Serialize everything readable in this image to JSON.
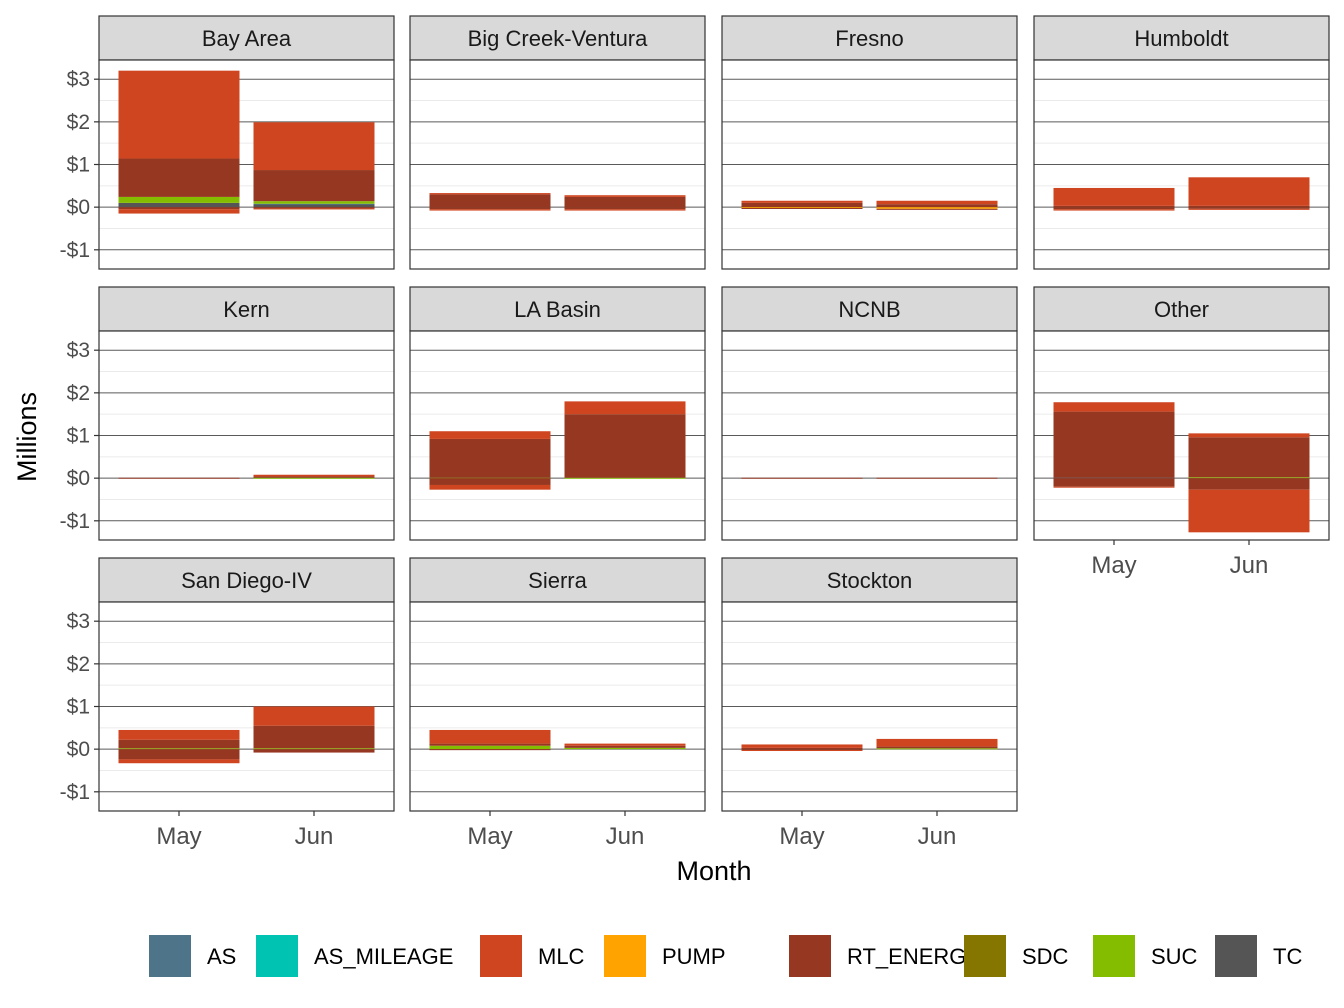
{
  "chart_data": {
    "type": "bar",
    "stacked": true,
    "facet_layout": "wrap-4-columns",
    "xlabel": "Month",
    "ylabel": "Millions",
    "ylim": [
      -1.45,
      3.45
    ],
    "y_ticks": [
      -1,
      0,
      1,
      2,
      3
    ],
    "y_tick_labels": [
      "-$1",
      "$0",
      "$1",
      "$2",
      "$3"
    ],
    "categories": [
      "May",
      "Jun"
    ],
    "grid": true,
    "legend_position": "bottom",
    "legend": [
      {
        "name": "AS",
        "color": "#4E7489"
      },
      {
        "name": "AS_MILEAGE",
        "color": "#00C4B1"
      },
      {
        "name": "MLC",
        "color": "#CF4520"
      },
      {
        "name": "PUMP",
        "color": "#FFA300"
      },
      {
        "name": "RT_ENERGY",
        "color": "#963821"
      },
      {
        "name": "SDC",
        "color": "#857600"
      },
      {
        "name": "SUC",
        "color": "#84BD00"
      },
      {
        "name": "TC",
        "color": "#555555"
      }
    ],
    "panels": [
      {
        "name": "Bay Area",
        "series": {
          "May": {
            "TC": 0.1,
            "SUC": 0.14,
            "RT_ENERGY": [
              0.9,
              -0.05
            ],
            "MLC": [
              2.06,
              -0.1
            ]
          },
          "Jun": {
            "TC": 0.07,
            "SUC": 0.06,
            "RT_ENERGY": [
              0.73,
              -0.03
            ],
            "MLC": [
              1.12,
              -0.02
            ],
            "AS": 0.01
          }
        }
      },
      {
        "name": "Big Creek-Ventura",
        "series": {
          "May": {
            "RT_ENERGY": [
              0.3,
              -0.05
            ],
            "MLC": [
              0.03,
              -0.03
            ]
          },
          "Jun": {
            "RT_ENERGY": [
              0.24,
              -0.05
            ],
            "MLC": [
              0.04,
              -0.03
            ]
          }
        }
      },
      {
        "name": "Fresno",
        "series": {
          "May": {
            "RT_ENERGY": [
              0.1,
              -0.01
            ],
            "MLC": [
              0.05,
              0
            ],
            "PUMP": -0.02
          },
          "Jun": {
            "RT_ENERGY": [
              0.07,
              -0.01
            ],
            "MLC": [
              0.08,
              0
            ],
            "PUMP": -0.04
          }
        }
      },
      {
        "name": "Humboldt",
        "series": {
          "May": {
            "RT_ENERGY": [
              0.03,
              -0.05
            ],
            "MLC": [
              0.42,
              -0.03
            ]
          },
          "Jun": {
            "RT_ENERGY": [
              0.03,
              -0.04
            ],
            "MLC": [
              0.67,
              -0.02
            ]
          }
        }
      },
      {
        "name": "Kern",
        "series": {
          "May": {
            "RT_ENERGY": [
              0.01,
              0
            ]
          },
          "Jun": {
            "SUC": 0.01,
            "RT_ENERGY": [
              0.03,
              0
            ],
            "MLC": [
              0.04,
              0
            ]
          }
        }
      },
      {
        "name": "LA Basin",
        "series": {
          "May": {
            "SUC": 0.01,
            "RT_ENERGY": [
              0.91,
              -0.16
            ],
            "MLC": [
              0.18,
              -0.11
            ]
          },
          "Jun": {
            "SUC": 0.01,
            "RT_ENERGY": [
              1.49,
              0
            ],
            "MLC": [
              0.3,
              0
            ]
          }
        }
      },
      {
        "name": "NCNB",
        "series": {
          "May": {
            "RT_ENERGY": [
              0.01,
              0
            ]
          },
          "Jun": {
            "RT_ENERGY": [
              0.01,
              0
            ]
          }
        }
      },
      {
        "name": "Other",
        "series": {
          "May": {
            "RT_ENERGY": [
              1.55,
              -0.2
            ],
            "MLC": [
              0.22,
              -0.02
            ],
            "AS": 0.01
          },
          "Jun": {
            "SUC": 0.02,
            "RT_ENERGY": [
              0.94,
              -0.27
            ],
            "MLC": [
              0.09,
              -1.0
            ]
          }
        }
      },
      {
        "name": "San Diego-IV",
        "series": {
          "May": {
            "SUC": 0.02,
            "RT_ENERGY": [
              0.2,
              -0.24
            ],
            "MLC": [
              0.23,
              -0.09
            ]
          },
          "Jun": {
            "SUC": 0.02,
            "RT_ENERGY": [
              0.53,
              -0.08
            ],
            "MLC": [
              0.45,
              0
            ]
          }
        }
      },
      {
        "name": "Sierra",
        "series": {
          "May": {
            "SUC": 0.08,
            "RT_ENERGY": [
              0.05,
              -0.02
            ],
            "MLC": [
              0.32,
              0
            ]
          },
          "Jun": {
            "SUC": 0.03,
            "RT_ENERGY": [
              0.05,
              0
            ],
            "MLC": [
              0.05,
              0
            ]
          }
        }
      },
      {
        "name": "Stockton",
        "series": {
          "May": {
            "RT_ENERGY": [
              0.03,
              -0.02
            ],
            "MLC": [
              0.08,
              -0.02
            ]
          },
          "Jun": {
            "SUC": 0.02,
            "RT_ENERGY": [
              0.04,
              0
            ],
            "MLC": [
              0.18,
              0
            ]
          }
        }
      }
    ]
  }
}
